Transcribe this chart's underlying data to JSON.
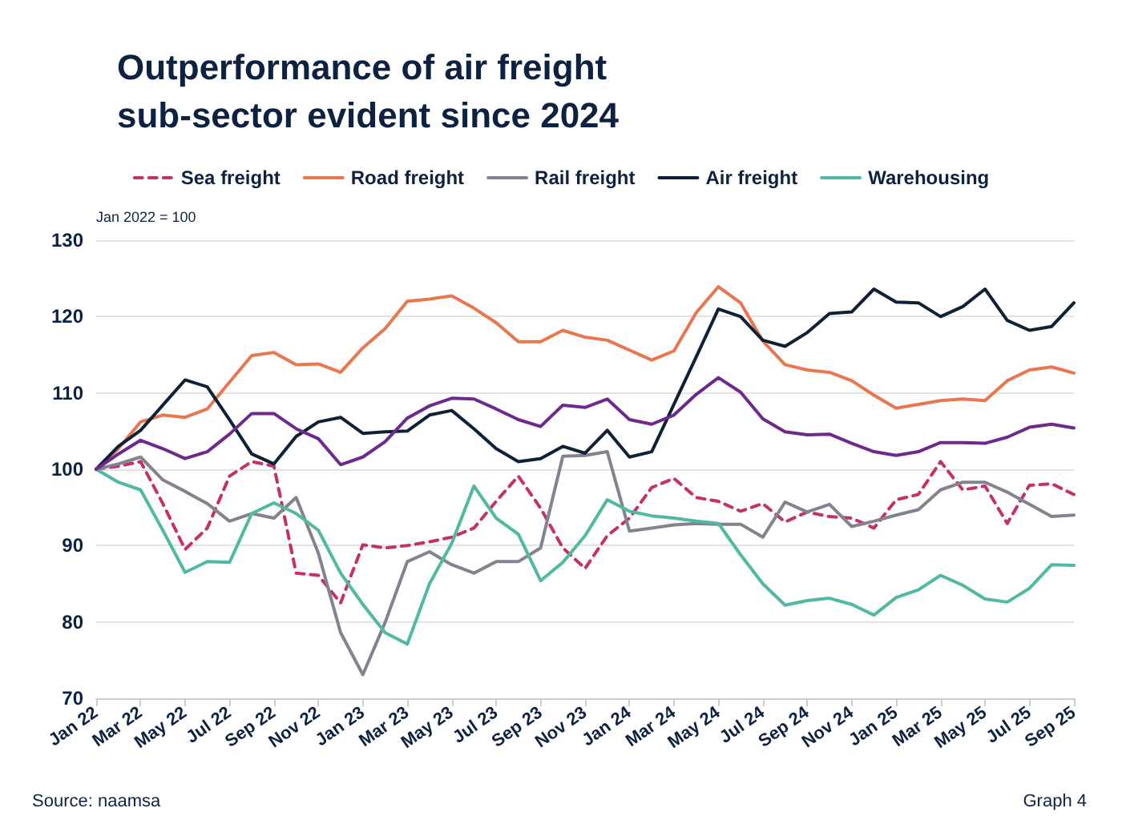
{
  "chart_data": {
    "type": "line",
    "title": "Outperformance of air freight sub-sector evident since 2024",
    "ylabel": "Jan 2022 = 100",
    "categories": [
      "Jan 22",
      null,
      "Mar 22",
      null,
      "May 22",
      null,
      "Jul 22",
      null,
      "Sep 22",
      null,
      "Nov 22",
      null,
      "Jan 23",
      null,
      "Mar 23",
      null,
      "May 23",
      null,
      "Jul 23",
      null,
      "Sep 23",
      null,
      "Nov 23",
      null,
      "Jan 24",
      null,
      "Mar 24",
      null,
      "May 24",
      null,
      "Jul 24",
      null,
      "Sep 24",
      null,
      "Nov 24",
      null,
      "Jan 25",
      null,
      "Mar 25",
      null,
      "May 25",
      null,
      "Jul 25",
      null,
      "Sep 25"
    ],
    "series": [
      {
        "name": "Sea freight",
        "color": "#c4306c",
        "line_style": "dashed",
        "values": [
          100,
          100.4,
          101,
          95.5,
          89.5,
          92.3,
          99.1,
          101,
          100.4,
          86.4,
          86.1,
          82.5,
          90.1,
          89.7,
          90,
          90.5,
          91.1,
          92.3,
          95.8,
          99.1,
          94.9,
          89.7,
          87,
          91.3,
          93.6,
          97.6,
          98.8,
          96.3,
          95.8,
          94.5,
          95.5,
          93.1,
          94.4,
          93.8,
          93.6,
          92.3,
          96,
          96.7,
          101,
          97.3,
          97.8,
          92.9,
          97.9,
          98.1,
          96.7
        ]
      },
      {
        "name": "Road freight",
        "color": "#e8764e",
        "values": [
          100,
          102.7,
          106.2,
          107.1,
          106.8,
          107.9,
          111.4,
          114.9,
          115.3,
          113.7,
          113.8,
          112.7,
          115.9,
          118.4,
          122,
          122.3,
          122.7,
          121.1,
          119.2,
          116.7,
          116.7,
          118.2,
          117.3,
          116.9,
          115.6,
          114.3,
          115.5,
          120.5,
          123.9,
          121.8,
          116.8,
          113.7,
          113,
          112.7,
          111.6,
          109.7,
          108,
          108.5,
          109,
          109.2,
          109,
          111.6,
          113,
          113.4,
          112.6
        ]
      },
      {
        "name": "Rail freight",
        "color": "#84828f",
        "values": [
          100,
          100.7,
          101.6,
          98.6,
          97.1,
          95.5,
          93.2,
          94.2,
          93.6,
          96.3,
          89,
          78.6,
          73.1,
          79.9,
          87.9,
          89.2,
          87.5,
          86.4,
          87.9,
          87.9,
          89.7,
          101.7,
          101.8,
          102.3,
          91.9,
          92.3,
          92.7,
          92.9,
          92.8,
          92.8,
          91.1,
          95.7,
          94.4,
          95.4,
          92.5,
          93.2,
          94,
          94.7,
          97.3,
          98.3,
          98.3,
          97,
          95.4,
          93.8,
          94
        ]
      },
      {
        "name": "Air freight",
        "color": "#0f2135",
        "values": [
          100,
          103,
          105.1,
          108.4,
          111.7,
          110.8,
          106.5,
          102,
          100.7,
          104.3,
          106.2,
          106.8,
          104.7,
          104.9,
          105,
          107.1,
          107.7,
          105.3,
          102.7,
          101,
          101.4,
          103,
          102.1,
          105.1,
          101.6,
          102.3,
          108.5,
          114.7,
          121,
          120,
          116.9,
          116.1,
          117.9,
          120.4,
          120.6,
          123.6,
          121.9,
          121.8,
          120,
          121.3,
          123.6,
          119.5,
          118.2,
          118.7,
          121.8
        ]
      },
      {
        "name": "Warehousing",
        "color": "#4fb9a1",
        "values": [
          100,
          98.3,
          97.3,
          92,
          86.5,
          87.9,
          87.8,
          94.2,
          95.6,
          94.2,
          92,
          86.4,
          82.3,
          78.6,
          77.1,
          85,
          90.3,
          97.8,
          93.6,
          91.5,
          85.4,
          87.8,
          91.3,
          96,
          94.5,
          93.9,
          93.6,
          93.2,
          92.9,
          88.8,
          85,
          82.2,
          82.8,
          83.1,
          82.3,
          80.9,
          83.2,
          84.2,
          86.1,
          84.8,
          83,
          82.6,
          84.4,
          87.5,
          87.4
        ]
      },
      {
        "color": "#6d2a8c",
        "values": [
          100,
          102,
          103.8,
          102.7,
          101.4,
          102.3,
          104.6,
          107.3,
          107.3,
          105.3,
          104,
          100.6,
          101.6,
          103.6,
          106.7,
          108.3,
          109.3,
          109.2,
          107.9,
          106.5,
          105.6,
          108.4,
          108.1,
          109.2,
          106.5,
          105.9,
          107.1,
          109.8,
          112,
          110.1,
          106.6,
          104.9,
          104.5,
          104.6,
          103.4,
          102.3,
          101.8,
          102.3,
          103.5,
          103.5,
          103.4,
          104.2,
          105.5,
          105.9,
          105.4
        ]
      }
    ],
    "ylim": [
      70,
      130
    ],
    "yticks": [
      70,
      80,
      90,
      100,
      110,
      120,
      130
    ],
    "grid": "y",
    "legend": "top",
    "marker": "none",
    "annotations": [
      "Source: naamsa",
      "Graph 4"
    ]
  }
}
